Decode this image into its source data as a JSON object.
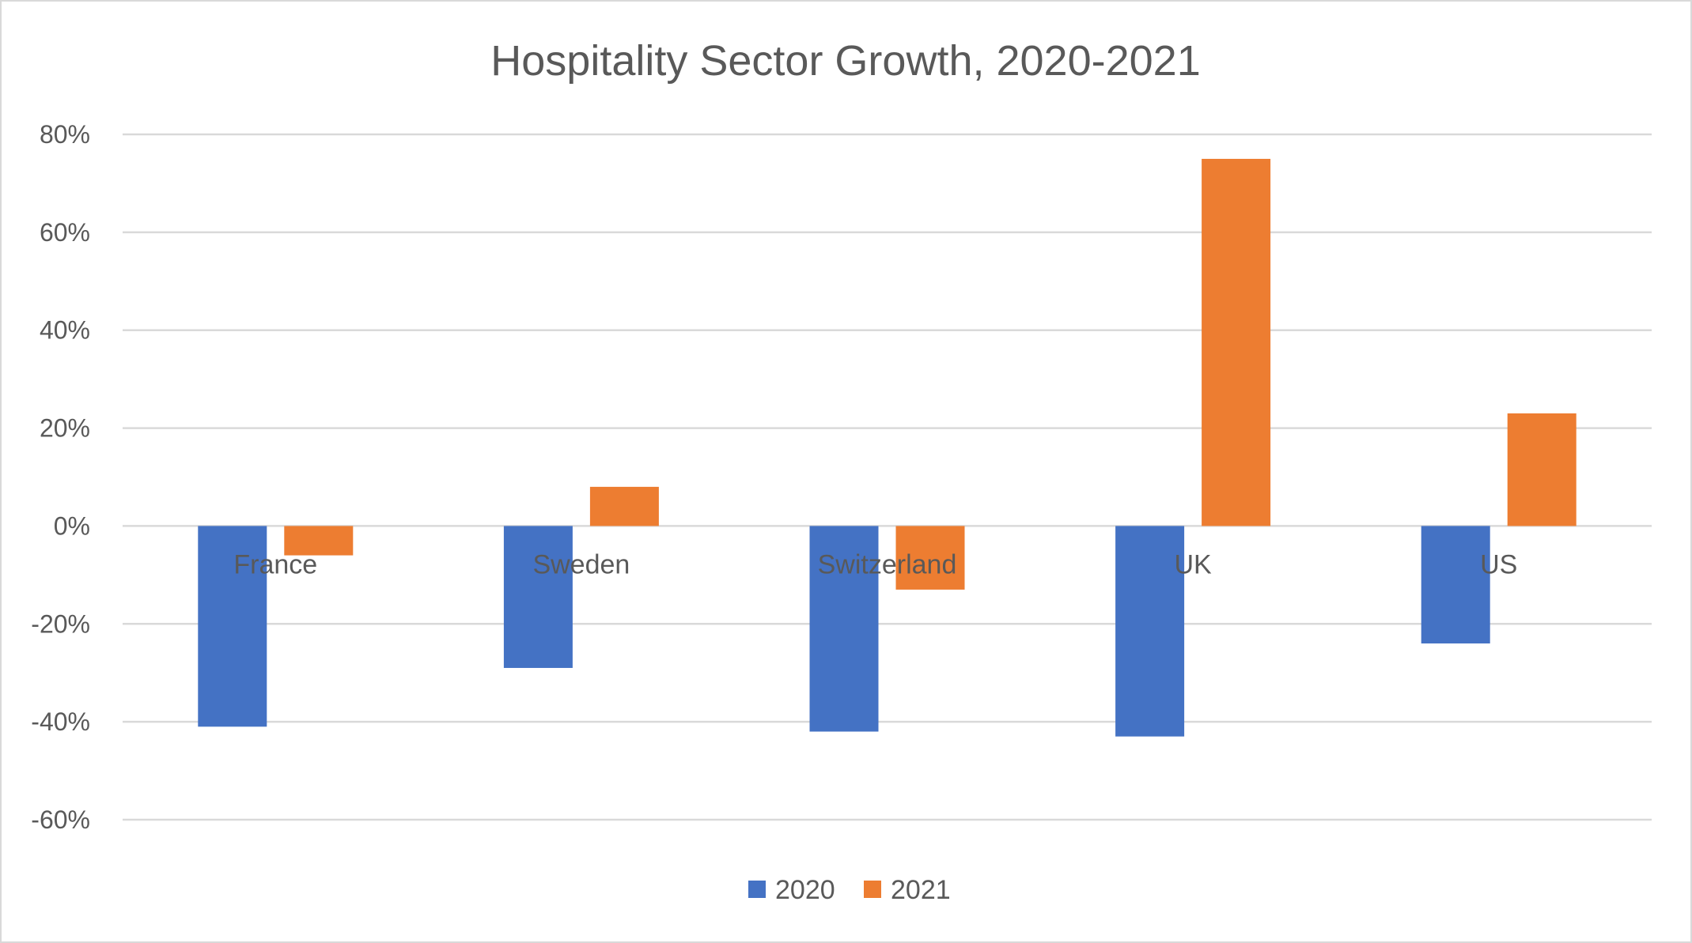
{
  "chart_data": {
    "type": "bar",
    "title": "Hospitality Sector Growth, 2020-2021",
    "xlabel": "",
    "ylabel": "",
    "categories": [
      "France",
      "Sweden",
      "Switzerland",
      "UK",
      "US"
    ],
    "series": [
      {
        "name": "2020",
        "color": "#4472C4",
        "values": [
          -41,
          -29,
          -42,
          -43,
          -24
        ]
      },
      {
        "name": "2021",
        "color": "#ED7D31",
        "values": [
          -6,
          8,
          -13,
          75,
          23
        ]
      }
    ],
    "unit": "%",
    "ylim": [
      -60,
      80
    ],
    "yticks": [
      80,
      60,
      40,
      20,
      0,
      -20,
      -40,
      -60
    ],
    "ytick_labels": [
      "80%",
      "60%",
      "40%",
      "20%",
      "0%",
      "-20%",
      "-40%",
      "-60%"
    ],
    "grid": true,
    "legend": "bottom"
  }
}
